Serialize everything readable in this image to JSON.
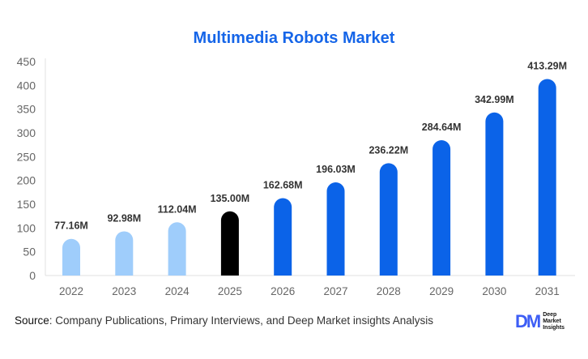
{
  "chart_data": {
    "type": "bar",
    "title": "Multimedia Robots Market",
    "categories": [
      "2022",
      "2023",
      "2024",
      "2025",
      "2026",
      "2027",
      "2028",
      "2029",
      "2030",
      "2031"
    ],
    "values": [
      77.16,
      92.98,
      112.04,
      135.0,
      162.68,
      196.03,
      236.22,
      284.64,
      342.99,
      413.29
    ],
    "data_labels": [
      "77.16M",
      "92.98M",
      "112.04M",
      "135.00M",
      "162.68M",
      "196.03M",
      "236.22M",
      "284.64M",
      "342.99M",
      "413.29M"
    ],
    "ylim": [
      0,
      450
    ],
    "yticks": [
      0,
      50,
      100,
      150,
      200,
      250,
      300,
      350,
      400,
      450
    ],
    "xlabel": "",
    "ylabel": "",
    "grid": false,
    "bar_colors": [
      "#9fcdfb",
      "#9fcdfb",
      "#9fcdfb",
      "#000000",
      "#0b63e8",
      "#0b63e8",
      "#0b63e8",
      "#0b63e8",
      "#0b63e8",
      "#0b63e8"
    ]
  },
  "footer": {
    "source_label": "Source",
    "source_text": ": Company Publications, Primary Interviews, and Deep Market insights Analysis",
    "logo_mark": "DM",
    "logo_text": [
      "Deep",
      "Market",
      "Insights"
    ]
  }
}
